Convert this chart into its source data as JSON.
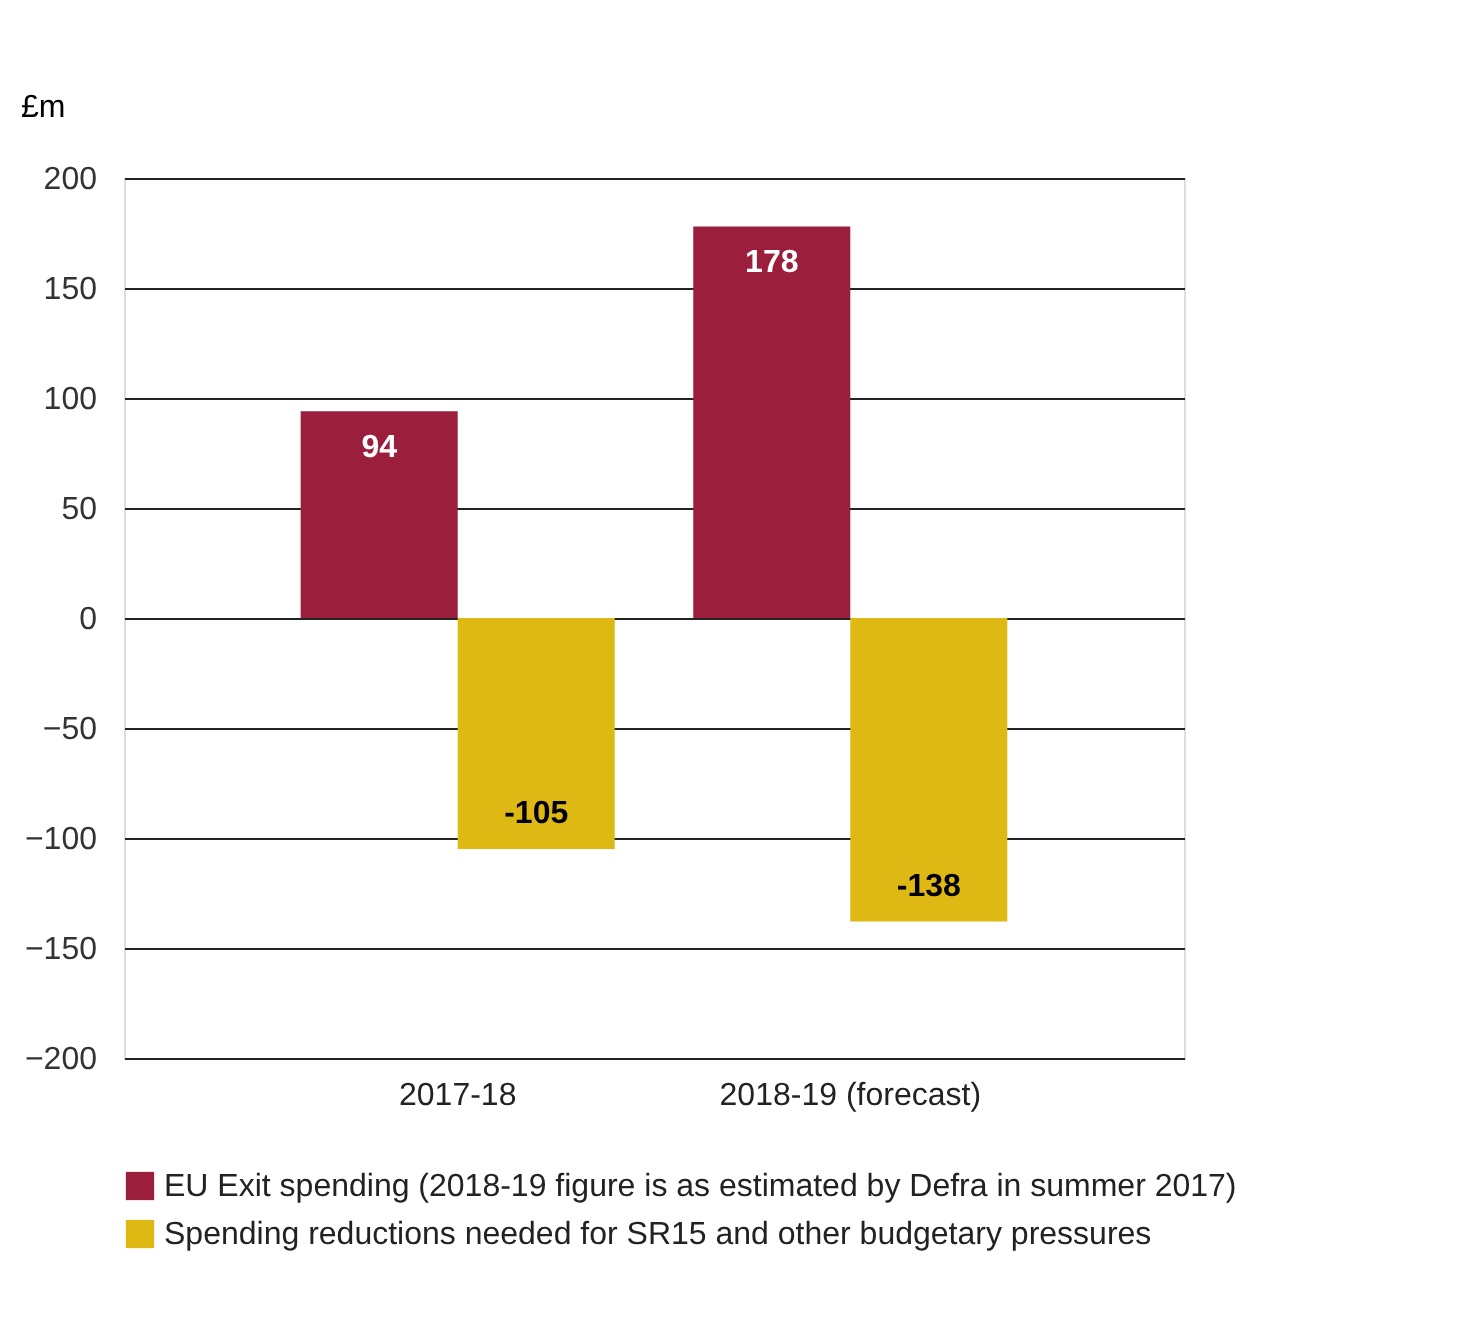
{
  "chart_data": {
    "type": "bar",
    "ylabel": "£m",
    "categories": [
      "2017-18",
      "2018-19 (forecast)"
    ],
    "series": [
      {
        "name": "EU Exit spending (2018-19 figure is as estimated by Defra in summer 2017)",
        "color": "#9b1f3c",
        "values": [
          94,
          178
        ]
      },
      {
        "name": "Spending reductions needed for SR15 and other budgetary pressures",
        "color": "#dfb913",
        "values": [
          -105,
          -138
        ]
      }
    ],
    "ylim": [
      -200,
      200
    ],
    "yticks": [
      -200,
      -150,
      -100,
      -50,
      0,
      50,
      100,
      150,
      200
    ],
    "grid": "y",
    "legend": "bottom",
    "data_labels": true
  }
}
